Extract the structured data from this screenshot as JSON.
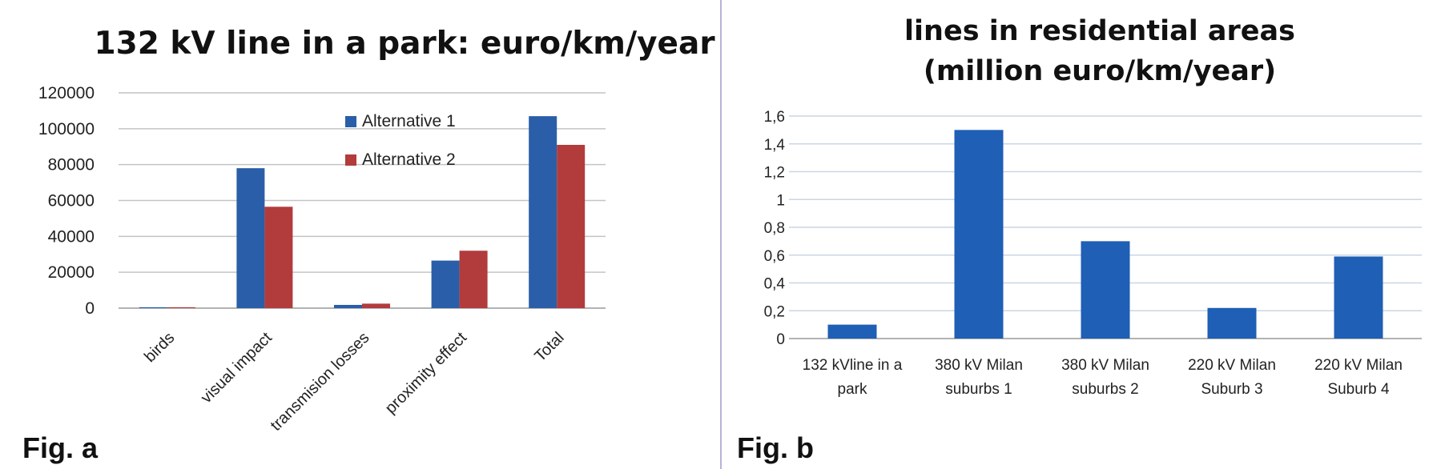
{
  "chart_data": [
    {
      "type": "bar",
      "figure_label": "Fig. a",
      "title": "132 kV line in a park: euro/km/year",
      "xlabel": "",
      "ylabel": "",
      "ylim": [
        0,
        120000
      ],
      "yticks": [
        "0",
        "20000",
        "40000",
        "60000",
        "80000",
        "100000",
        "120000"
      ],
      "categories": [
        "birds",
        "visual impact",
        "transmision losses",
        "proximity effect",
        "Total"
      ],
      "series": [
        {
          "name": "Alternative 1",
          "color": "#2a5ea8",
          "values": [
            500,
            78000,
            1800,
            26500,
            107000
          ]
        },
        {
          "name": "Alternative 2",
          "color": "#b23b3b",
          "values": [
            500,
            56500,
            2500,
            32000,
            91000
          ]
        }
      ],
      "grid": true,
      "legend": "top-right (inside plot)"
    },
    {
      "type": "bar",
      "figure_label": "Fig. b",
      "title": "lines in residential areas (million euro/km/year)",
      "title_lines": [
        "lines in residential areas",
        "(million euro/km/year)"
      ],
      "xlabel": "",
      "ylabel": "",
      "ylim": [
        0,
        1.6
      ],
      "yticks": [
        "0",
        "0,2",
        "0,4",
        "0,6",
        "0,8",
        "1",
        "1,2",
        "1,4",
        "1,6"
      ],
      "categories": [
        [
          "132 kVline in a",
          "park"
        ],
        [
          "380 kV Milan",
          "suburbs 1"
        ],
        [
          "380 kV Milan",
          "suburbs 2"
        ],
        [
          "220 kV Milan",
          "Suburb 3"
        ],
        [
          "220 kV Milan",
          "Suburb 4"
        ]
      ],
      "series": [
        {
          "color": "#1f5fb5",
          "values": [
            0.1,
            1.5,
            0.7,
            0.22,
            0.59
          ]
        }
      ],
      "grid": true,
      "legend": "none"
    }
  ]
}
